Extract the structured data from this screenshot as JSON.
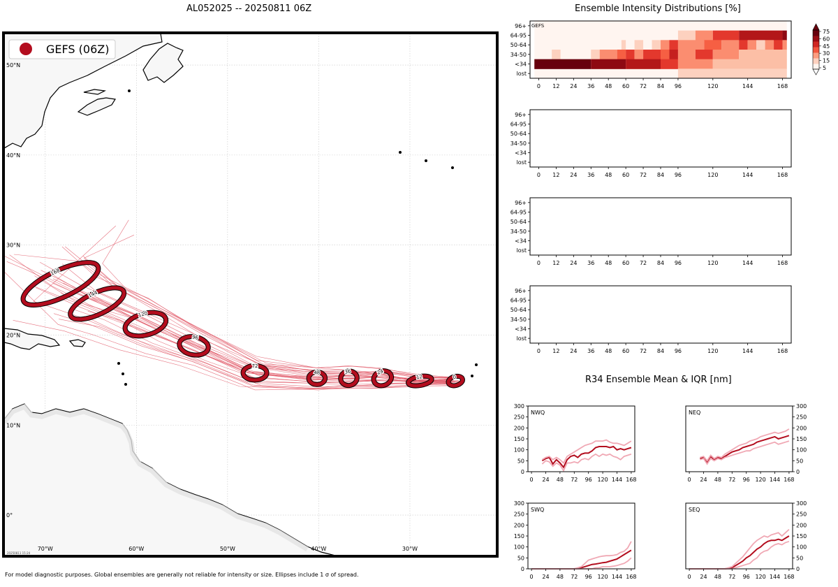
{
  "header": {
    "map_title": "AL052025 -- 20250811 06Z",
    "intensity_title": "Ensemble Intensity Distributions [%]",
    "r34_title": "R34 Ensemble Mean & IQR [nm]"
  },
  "footer": {
    "note": "For model diagnostic purposes. Global ensembles are generally not reliable for intensity or size. Ellipses include 1 σ of spread.",
    "stamp": "20250811 15:24"
  },
  "colors": {
    "track": "#e05060",
    "ellipse_fill": "#b30d1e",
    "mean_line": "#b30d1e",
    "iqr_line": "#f0a8b4",
    "land": "#f7f7f7",
    "coast": "#000000"
  },
  "chart_data": [
    {
      "type": "scatter",
      "subtype": "track-map",
      "legend": "GEFS (06Z)",
      "legend_position": "top-left",
      "lon_labels": [
        "70°W",
        "60°W",
        "50°W",
        "40°W",
        "30°W"
      ],
      "lon_values": [
        -70,
        -60,
        -50,
        -40,
        -30
      ],
      "lat_labels": [
        "50°N",
        "40°N",
        "30°N",
        "20°N",
        "10°N",
        "0°"
      ],
      "lat_values": [
        50,
        40,
        30,
        20,
        10,
        0
      ],
      "xlim": [
        -74.5,
        -20.5
      ],
      "ylim": [
        -4.5,
        53.5
      ],
      "grid": true,
      "ellipses": [
        {
          "hour": 0,
          "lon": -25.0,
          "lat": 14.9,
          "rx": 0.8,
          "ry": 0.5,
          "rot": -15
        },
        {
          "hour": 12,
          "lon": -28.9,
          "lat": 14.9,
          "rx": 1.3,
          "ry": 0.5,
          "rot": -10
        },
        {
          "hour": 24,
          "lon": -33.0,
          "lat": 15.2,
          "rx": 1.0,
          "ry": 0.8,
          "rot": -20
        },
        {
          "hour": 36,
          "lon": -36.7,
          "lat": 15.2,
          "rx": 0.9,
          "ry": 0.8,
          "rot": -10
        },
        {
          "hour": 48,
          "lon": -40.2,
          "lat": 15.2,
          "rx": 0.9,
          "ry": 0.7,
          "rot": 0
        },
        {
          "hour": 72,
          "lon": -47.0,
          "lat": 15.8,
          "rx": 1.3,
          "ry": 0.8,
          "rot": 0
        },
        {
          "hour": 96,
          "lon": -53.7,
          "lat": 18.8,
          "rx": 1.6,
          "ry": 1.0,
          "rot": 10
        },
        {
          "hour": 120,
          "lon": -59.0,
          "lat": 21.2,
          "rx": 2.3,
          "ry": 1.2,
          "rot": -15
        },
        {
          "hour": 144,
          "lon": -64.3,
          "lat": 23.5,
          "rx": 3.2,
          "ry": 1.2,
          "rot": -25
        },
        {
          "hour": 168,
          "lon": -68.3,
          "lat": 25.7,
          "rx": 4.5,
          "ry": 1.5,
          "rot": -25
        }
      ]
    },
    {
      "type": "heatmap",
      "label": "GEFS",
      "y_categories": [
        "96+",
        "64-95",
        "50-64",
        "34-50",
        "<34",
        "lost"
      ],
      "x_ticks": [
        0,
        12,
        24,
        36,
        48,
        60,
        72,
        84,
        96,
        120,
        144,
        168
      ],
      "xlim": [
        -6,
        174
      ],
      "colorbar_ticks": [
        5,
        15,
        30,
        45,
        60,
        75
      ],
      "cells": [
        {
          "cat": "64-95",
          "from": 96,
          "to": 108,
          "value": 10
        },
        {
          "cat": "64-95",
          "from": 108,
          "to": 120,
          "value": 25
        },
        {
          "cat": "64-95",
          "from": 120,
          "to": 138,
          "value": 45
        },
        {
          "cat": "64-95",
          "from": 138,
          "to": 168,
          "value": 60
        },
        {
          "cat": "64-95",
          "from": 168,
          "to": 171,
          "value": 70
        },
        {
          "cat": "50-64",
          "from": 57,
          "to": 60,
          "value": 10
        },
        {
          "cat": "50-64",
          "from": 66,
          "to": 72,
          "value": 10
        },
        {
          "cat": "50-64",
          "from": 78,
          "to": 84,
          "value": 10
        },
        {
          "cat": "50-64",
          "from": 84,
          "to": 90,
          "value": 25
        },
        {
          "cat": "50-64",
          "from": 90,
          "to": 96,
          "value": 45
        },
        {
          "cat": "50-64",
          "from": 96,
          "to": 114,
          "value": 25
        },
        {
          "cat": "50-64",
          "from": 114,
          "to": 126,
          "value": 35
        },
        {
          "cat": "50-64",
          "from": 126,
          "to": 138,
          "value": 25
        },
        {
          "cat": "50-64",
          "from": 138,
          "to": 144,
          "value": 45
        },
        {
          "cat": "50-64",
          "from": 144,
          "to": 150,
          "value": 25
        },
        {
          "cat": "50-64",
          "from": 150,
          "to": 156,
          "value": 10
        },
        {
          "cat": "50-64",
          "from": 156,
          "to": 162,
          "value": 25
        },
        {
          "cat": "50-64",
          "from": 162,
          "to": 168,
          "value": 45
        },
        {
          "cat": "50-64",
          "from": 168,
          "to": 171,
          "value": 25
        },
        {
          "cat": "34-50",
          "from": 9,
          "to": 15,
          "value": 10
        },
        {
          "cat": "34-50",
          "from": 36,
          "to": 42,
          "value": 10
        },
        {
          "cat": "34-50",
          "from": 42,
          "to": 54,
          "value": 25
        },
        {
          "cat": "34-50",
          "from": 54,
          "to": 60,
          "value": 35
        },
        {
          "cat": "34-50",
          "from": 60,
          "to": 66,
          "value": 45
        },
        {
          "cat": "34-50",
          "from": 66,
          "to": 72,
          "value": 25
        },
        {
          "cat": "34-50",
          "from": 72,
          "to": 84,
          "value": 45
        },
        {
          "cat": "34-50",
          "from": 84,
          "to": 90,
          "value": 35
        },
        {
          "cat": "34-50",
          "from": 90,
          "to": 96,
          "value": 55
        },
        {
          "cat": "34-50",
          "from": 96,
          "to": 108,
          "value": 25
        },
        {
          "cat": "34-50",
          "from": 108,
          "to": 120,
          "value": 45
        },
        {
          "cat": "34-50",
          "from": 120,
          "to": 138,
          "value": 25
        },
        {
          "cat": "34-50",
          "from": 138,
          "to": 171,
          "value": 15
        },
        {
          "cat": "<34",
          "from": -3,
          "to": 36,
          "value": 80
        },
        {
          "cat": "<34",
          "from": 36,
          "to": 60,
          "value": 70
        },
        {
          "cat": "<34",
          "from": 60,
          "to": 84,
          "value": 60
        },
        {
          "cat": "<34",
          "from": 84,
          "to": 96,
          "value": 45
        },
        {
          "cat": "<34",
          "from": 96,
          "to": 120,
          "value": 25
        },
        {
          "cat": "<34",
          "from": 120,
          "to": 171,
          "value": 15
        },
        {
          "cat": "lost",
          "from": 96,
          "to": 171,
          "value": 10
        }
      ]
    },
    {
      "type": "heatmap",
      "label": "",
      "y_categories": [
        "96+",
        "64-95",
        "50-64",
        "34-50",
        "<34",
        "lost"
      ],
      "x_ticks": [
        0,
        12,
        24,
        36,
        48,
        60,
        72,
        84,
        96,
        120,
        144,
        168
      ],
      "xlim": [
        -6,
        174
      ],
      "cells": []
    },
    {
      "type": "heatmap",
      "label": "",
      "y_categories": [
        "96+",
        "64-95",
        "50-64",
        "34-50",
        "<34",
        "lost"
      ],
      "x_ticks": [
        0,
        12,
        24,
        36,
        48,
        60,
        72,
        84,
        96,
        120,
        144,
        168
      ],
      "xlim": [
        -6,
        174
      ],
      "cells": []
    },
    {
      "type": "heatmap",
      "label": "",
      "y_categories": [
        "96+",
        "64-95",
        "50-64",
        "34-50",
        "<34",
        "lost"
      ],
      "x_ticks": [
        0,
        12,
        24,
        36,
        48,
        60,
        72,
        84,
        96,
        120,
        144,
        168
      ],
      "xlim": [
        -6,
        174
      ],
      "cells": []
    },
    {
      "type": "line",
      "label": "NWQ",
      "x": [
        18,
        24,
        30,
        36,
        42,
        48,
        54,
        60,
        66,
        72,
        78,
        84,
        90,
        96,
        102,
        108,
        114,
        120,
        126,
        132,
        138,
        144,
        150,
        156,
        162,
        168
      ],
      "series": [
        {
          "role": "mean",
          "values": [
            50,
            60,
            65,
            35,
            55,
            40,
            20,
            55,
            70,
            75,
            65,
            80,
            85,
            85,
            95,
            110,
            115,
            115,
            115,
            110,
            115,
            100,
            105,
            100,
            105,
            110
          ]
        },
        {
          "role": "q75",
          "values": [
            55,
            65,
            70,
            55,
            65,
            55,
            40,
            70,
            80,
            90,
            100,
            110,
            120,
            125,
            130,
            140,
            140,
            140,
            145,
            135,
            130,
            130,
            125,
            120,
            130,
            140
          ]
        },
        {
          "role": "q25",
          "values": [
            35,
            50,
            45,
            25,
            40,
            30,
            5,
            40,
            40,
            45,
            40,
            55,
            60,
            55,
            70,
            80,
            70,
            80,
            75,
            80,
            70,
            65,
            55,
            70,
            75,
            80
          ]
        }
      ],
      "x_ticks": [
        0,
        24,
        48,
        72,
        96,
        120,
        144,
        168
      ],
      "y_ticks": [
        0,
        50,
        100,
        150,
        200,
        250,
        300
      ],
      "ylim": [
        0,
        300
      ],
      "xlim": [
        -6,
        174
      ],
      "y_axis_side": "left"
    },
    {
      "type": "line",
      "label": "NEQ",
      "x": [
        18,
        24,
        30,
        36,
        42,
        48,
        54,
        60,
        66,
        72,
        78,
        84,
        90,
        96,
        102,
        108,
        114,
        120,
        126,
        132,
        138,
        144,
        150,
        156,
        162,
        168
      ],
      "series": [
        {
          "role": "mean",
          "values": [
            60,
            65,
            45,
            70,
            55,
            65,
            60,
            70,
            80,
            90,
            95,
            100,
            110,
            115,
            120,
            125,
            135,
            140,
            145,
            150,
            155,
            160,
            150,
            155,
            160,
            165
          ]
        },
        {
          "role": "q75",
          "values": [
            65,
            70,
            50,
            75,
            60,
            70,
            65,
            80,
            90,
            100,
            110,
            120,
            125,
            130,
            140,
            145,
            150,
            160,
            165,
            170,
            175,
            180,
            175,
            180,
            185,
            195
          ]
        },
        {
          "role": "q25",
          "values": [
            55,
            60,
            35,
            60,
            50,
            60,
            55,
            65,
            70,
            75,
            80,
            85,
            90,
            95,
            95,
            105,
            110,
            115,
            120,
            125,
            130,
            135,
            125,
            130,
            135,
            140
          ]
        }
      ],
      "x_ticks": [
        0,
        24,
        48,
        72,
        96,
        120,
        144,
        168
      ],
      "y_ticks": [
        0,
        50,
        100,
        150,
        200,
        250,
        300
      ],
      "ylim": [
        0,
        300
      ],
      "xlim": [
        -6,
        174
      ],
      "y_axis_side": "right"
    },
    {
      "type": "line",
      "label": "SWQ",
      "x": [
        0,
        12,
        24,
        36,
        48,
        60,
        72,
        84,
        96,
        102,
        108,
        114,
        120,
        126,
        132,
        138,
        144,
        150,
        156,
        162,
        168
      ],
      "series": [
        {
          "role": "mean",
          "values": [
            0,
            0,
            0,
            0,
            0,
            0,
            0,
            5,
            15,
            20,
            22,
            25,
            28,
            30,
            35,
            40,
            45,
            55,
            65,
            75,
            85
          ]
        },
        {
          "role": "q75",
          "values": [
            0,
            0,
            0,
            0,
            0,
            0,
            0,
            10,
            40,
            45,
            50,
            55,
            58,
            60,
            60,
            62,
            65,
            75,
            80,
            95,
            125
          ]
        },
        {
          "role": "q25",
          "values": [
            0,
            0,
            0,
            0,
            0,
            0,
            0,
            0,
            0,
            0,
            5,
            5,
            10,
            10,
            10,
            12,
            15,
            20,
            25,
            35,
            50
          ]
        }
      ],
      "x_ticks": [
        0,
        24,
        48,
        72,
        96,
        120,
        144,
        168
      ],
      "y_ticks": [
        0,
        50,
        100,
        150,
        200,
        250,
        300
      ],
      "ylim": [
        0,
        300
      ],
      "xlim": [
        -6,
        174
      ],
      "y_axis_side": "left"
    },
    {
      "type": "line",
      "label": "SEQ",
      "x": [
        0,
        12,
        24,
        36,
        48,
        60,
        72,
        78,
        84,
        90,
        96,
        102,
        108,
        114,
        120,
        126,
        132,
        138,
        144,
        150,
        156,
        162,
        168
      ],
      "series": [
        {
          "role": "mean",
          "values": [
            0,
            0,
            0,
            0,
            0,
            0,
            5,
            15,
            25,
            35,
            50,
            60,
            75,
            90,
            100,
            115,
            125,
            130,
            130,
            135,
            130,
            140,
            150
          ]
        },
        {
          "role": "q75",
          "values": [
            0,
            0,
            0,
            0,
            0,
            0,
            10,
            25,
            40,
            55,
            75,
            95,
            115,
            130,
            140,
            150,
            145,
            155,
            160,
            165,
            150,
            165,
            180
          ]
        },
        {
          "role": "q25",
          "values": [
            0,
            0,
            0,
            0,
            0,
            0,
            0,
            5,
            10,
            15,
            20,
            25,
            40,
            50,
            70,
            80,
            85,
            100,
            110,
            115,
            110,
            120,
            125
          ]
        }
      ],
      "x_ticks": [
        0,
        24,
        48,
        72,
        96,
        120,
        144,
        168
      ],
      "y_ticks": [
        0,
        50,
        100,
        150,
        200,
        250,
        300
      ],
      "ylim": [
        0,
        300
      ],
      "xlim": [
        -6,
        174
      ],
      "y_axis_side": "right"
    }
  ]
}
